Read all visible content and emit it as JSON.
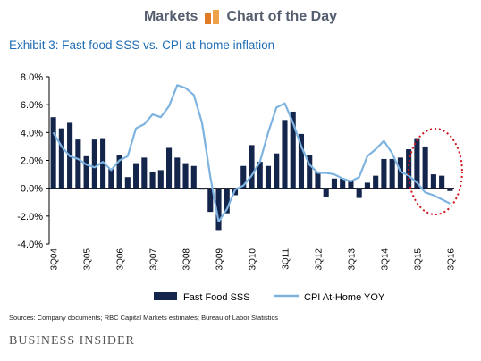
{
  "header": {
    "left": "Markets",
    "icon": "chart-of-day-icon",
    "right": "Chart of the Day"
  },
  "colors": {
    "bar": "#14254c",
    "line": "#7eb3e0",
    "title": "#1f6db5",
    "highlight": "#d0141a"
  },
  "footer": {
    "sources": "Sources: Company documents; RBC Capital Markets estimates; Bureau of Labor Statistics",
    "brand": "BUSINESS INSIDER"
  },
  "chart_data": {
    "type": "bar",
    "title": "Exhibit 3: Fast food SSS vs. CPI at-home inflation",
    "ylim": [
      -4,
      8
    ],
    "yticks": [
      -4,
      -2,
      0,
      2,
      4,
      6,
      8
    ],
    "ytick_labels": [
      "-4.0%",
      "-2.0%",
      "0.0%",
      "2.0%",
      "4.0%",
      "6.0%",
      "8.0%"
    ],
    "grid": false,
    "legend": "bottom",
    "categories": [
      "3Q04",
      "4Q04",
      "1Q05",
      "2Q05",
      "3Q05",
      "4Q05",
      "1Q06",
      "2Q06",
      "3Q06",
      "4Q06",
      "1Q07",
      "2Q07",
      "3Q07",
      "4Q07",
      "1Q08",
      "2Q08",
      "3Q08",
      "4Q08",
      "1Q09",
      "2Q09",
      "3Q09",
      "4Q09",
      "1Q10",
      "2Q10",
      "3Q10",
      "4Q10",
      "1Q11",
      "2Q11",
      "3Q11",
      "4Q11",
      "1Q12",
      "2Q12",
      "3Q12",
      "4Q12",
      "1Q13",
      "2Q13",
      "3Q13",
      "4Q13",
      "1Q14",
      "2Q14",
      "3Q14",
      "4Q14",
      "1Q15",
      "2Q15",
      "3Q15",
      "4Q15",
      "1Q16",
      "2Q16",
      "3Q16"
    ],
    "xtick_labels": [
      "3Q04",
      "3Q05",
      "3Q06",
      "3Q07",
      "3Q08",
      "3Q09",
      "3Q10",
      "3Q11",
      "3Q12",
      "3Q13",
      "3Q14",
      "3Q15",
      "3Q16"
    ],
    "series": [
      {
        "name": "Fast Food SSS",
        "type": "bar",
        "values": [
          5.1,
          4.3,
          4.7,
          3.5,
          2.3,
          3.5,
          3.6,
          1.4,
          2.4,
          0.8,
          1.8,
          2.2,
          1.2,
          1.3,
          2.9,
          2.2,
          1.8,
          1.6,
          -0.1,
          -1.7,
          -3.0,
          -1.8,
          -0.5,
          1.6,
          3.1,
          1.9,
          1.6,
          2.5,
          4.9,
          5.5,
          3.9,
          2.4,
          1.2,
          -0.6,
          0.7,
          0.7,
          0.5,
          -0.7,
          0.4,
          0.9,
          2.1,
          2.1,
          2.2,
          2.8,
          3.6,
          3.0,
          1.0,
          0.9,
          -0.2
        ],
        "color": "#14254c"
      },
      {
        "name": "CPI At-Home YOY",
        "type": "line",
        "values": [
          4.0,
          3.0,
          2.3,
          2.1,
          1.7,
          1.5,
          1.9,
          1.3,
          2.0,
          2.3,
          4.3,
          4.6,
          5.3,
          5.1,
          5.9,
          7.4,
          7.2,
          6.7,
          4.7,
          0.8,
          -2.4,
          -1.5,
          -0.1,
          0.2,
          0.9,
          1.9,
          4.0,
          5.8,
          6.1,
          4.7,
          3.0,
          1.7,
          1.1,
          1.1,
          1.0,
          0.7,
          0.5,
          0.8,
          2.3,
          2.8,
          3.4,
          2.5,
          1.2,
          0.9,
          0.4,
          -0.3,
          -0.5,
          -0.8,
          -1.1
        ],
        "color": "#7eb3e0"
      }
    ]
  }
}
